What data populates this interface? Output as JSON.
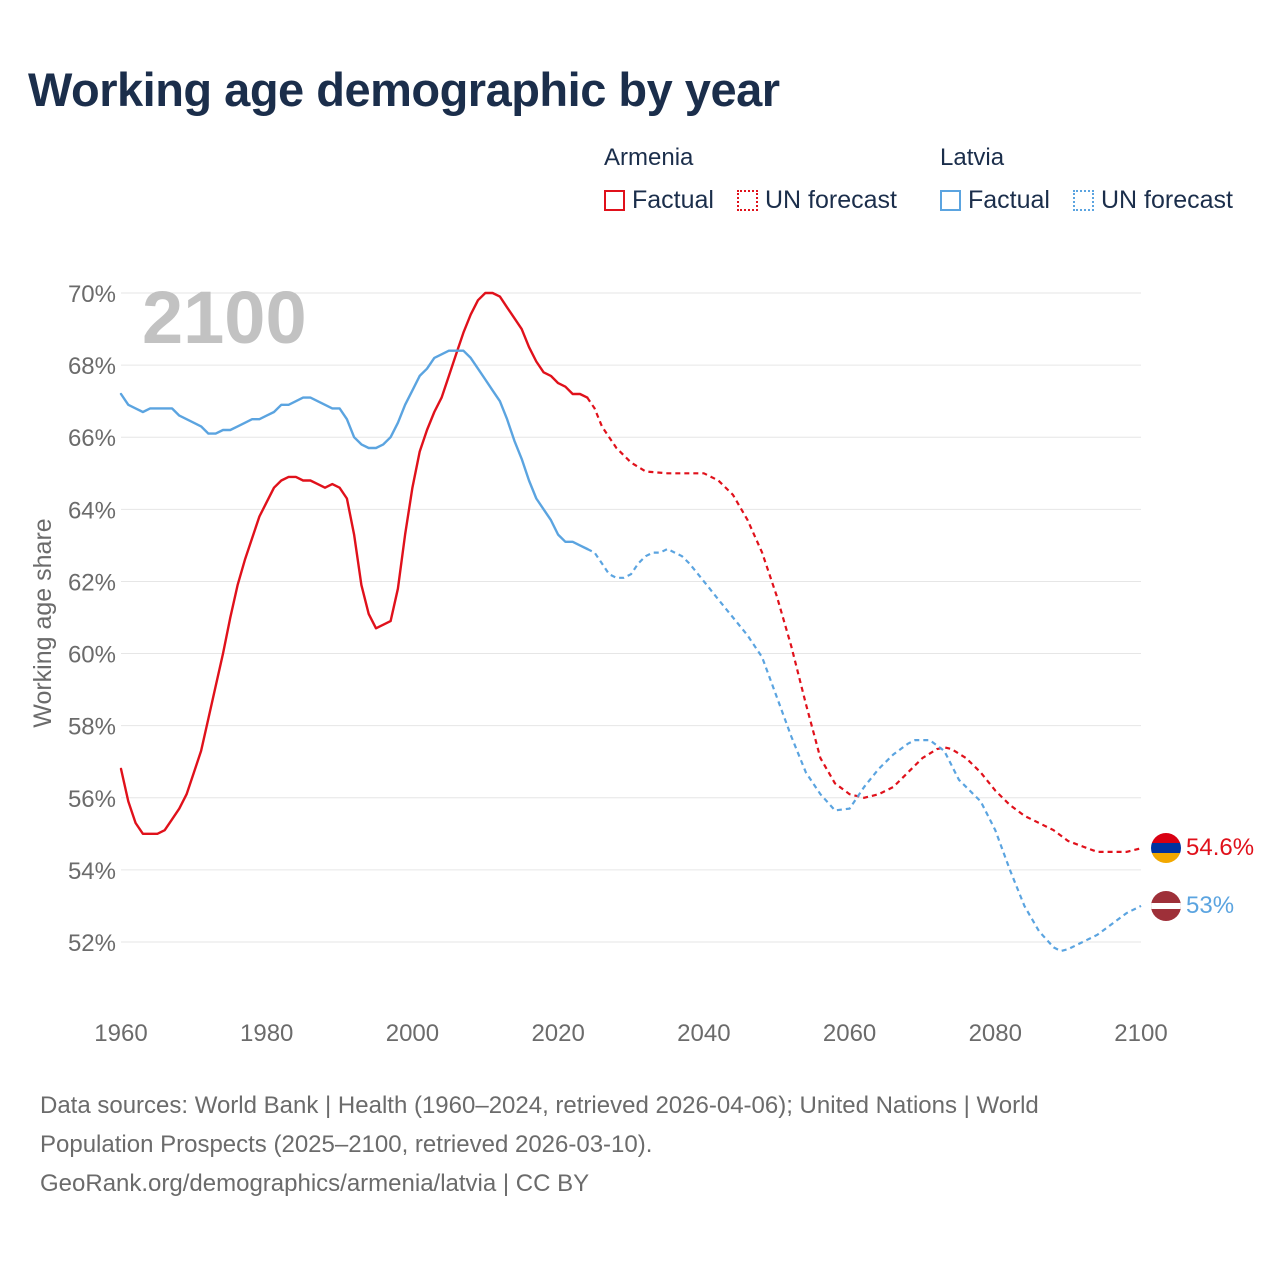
{
  "title": "Working age demographic by year",
  "legend": {
    "groups": [
      {
        "name": "Armenia",
        "color": "#e0111b",
        "factual_label": "Factual",
        "forecast_label": "UN forecast"
      },
      {
        "name": "Latvia",
        "color": "#5ba4e0",
        "factual_label": "Factual",
        "forecast_label": "UN forecast"
      }
    ]
  },
  "year_watermark": "2100",
  "source": {
    "line1": "Data sources: World Bank | Health (1960–2024, retrieved 2026-04-06); United Nations | World",
    "line2": "Population Prospects (2025–2100, retrieved 2026-03-10).",
    "line3": "GeoRank.org/demographics/armenia/latvia | CC BY"
  },
  "chart_data": {
    "type": "line",
    "title": "Working age demographic by year",
    "xlabel": "",
    "ylabel": "Working age share",
    "xlim": [
      1960,
      2100
    ],
    "ylim": [
      51,
      70
    ],
    "x_ticks": [
      1960,
      1980,
      2000,
      2020,
      2040,
      2060,
      2080,
      2100
    ],
    "y_ticks": [
      52,
      54,
      56,
      58,
      60,
      62,
      64,
      66,
      68,
      70
    ],
    "y_tick_labels": [
      "52%",
      "54%",
      "56%",
      "58%",
      "60%",
      "62%",
      "64%",
      "66%",
      "68%",
      "70%"
    ],
    "grid": true,
    "legend_position": "top-right",
    "factual_end_year": 2024,
    "series": [
      {
        "name": "Armenia",
        "color": "#e0111b",
        "end_label": "54.6%",
        "points": [
          [
            1960,
            56.8
          ],
          [
            1961,
            55.9
          ],
          [
            1962,
            55.3
          ],
          [
            1963,
            55.0
          ],
          [
            1964,
            55.0
          ],
          [
            1965,
            55.0
          ],
          [
            1966,
            55.1
          ],
          [
            1967,
            55.4
          ],
          [
            1968,
            55.7
          ],
          [
            1969,
            56.1
          ],
          [
            1970,
            56.7
          ],
          [
            1971,
            57.3
          ],
          [
            1972,
            58.2
          ],
          [
            1973,
            59.1
          ],
          [
            1974,
            60.0
          ],
          [
            1975,
            61.0
          ],
          [
            1976,
            61.9
          ],
          [
            1977,
            62.6
          ],
          [
            1978,
            63.2
          ],
          [
            1979,
            63.8
          ],
          [
            1980,
            64.2
          ],
          [
            1981,
            64.6
          ],
          [
            1982,
            64.8
          ],
          [
            1983,
            64.9
          ],
          [
            1984,
            64.9
          ],
          [
            1985,
            64.8
          ],
          [
            1986,
            64.8
          ],
          [
            1987,
            64.7
          ],
          [
            1988,
            64.6
          ],
          [
            1989,
            64.7
          ],
          [
            1990,
            64.6
          ],
          [
            1991,
            64.3
          ],
          [
            1992,
            63.3
          ],
          [
            1993,
            61.9
          ],
          [
            1994,
            61.1
          ],
          [
            1995,
            60.7
          ],
          [
            1996,
            60.8
          ],
          [
            1997,
            60.9
          ],
          [
            1998,
            61.8
          ],
          [
            1999,
            63.3
          ],
          [
            2000,
            64.6
          ],
          [
            2001,
            65.6
          ],
          [
            2002,
            66.2
          ],
          [
            2003,
            66.7
          ],
          [
            2004,
            67.1
          ],
          [
            2005,
            67.7
          ],
          [
            2006,
            68.3
          ],
          [
            2007,
            68.9
          ],
          [
            2008,
            69.4
          ],
          [
            2009,
            69.8
          ],
          [
            2010,
            70.0
          ],
          [
            2011,
            70.0
          ],
          [
            2012,
            69.9
          ],
          [
            2013,
            69.6
          ],
          [
            2014,
            69.3
          ],
          [
            2015,
            69.0
          ],
          [
            2016,
            68.5
          ],
          [
            2017,
            68.1
          ],
          [
            2018,
            67.8
          ],
          [
            2019,
            67.7
          ],
          [
            2020,
            67.5
          ],
          [
            2021,
            67.4
          ],
          [
            2022,
            67.2
          ],
          [
            2023,
            67.2
          ],
          [
            2024,
            67.1
          ],
          [
            2025,
            66.8
          ],
          [
            2026,
            66.3
          ],
          [
            2028,
            65.7
          ],
          [
            2030,
            65.3
          ],
          [
            2032,
            65.05
          ],
          [
            2035,
            65.0
          ],
          [
            2040,
            65.0
          ],
          [
            2042,
            64.8
          ],
          [
            2044,
            64.4
          ],
          [
            2046,
            63.7
          ],
          [
            2048,
            62.8
          ],
          [
            2050,
            61.6
          ],
          [
            2052,
            60.2
          ],
          [
            2054,
            58.6
          ],
          [
            2056,
            57.1
          ],
          [
            2058,
            56.4
          ],
          [
            2060,
            56.1
          ],
          [
            2062,
            56.0
          ],
          [
            2064,
            56.1
          ],
          [
            2066,
            56.3
          ],
          [
            2068,
            56.7
          ],
          [
            2070,
            57.1
          ],
          [
            2072,
            57.35
          ],
          [
            2073,
            57.4
          ],
          [
            2074,
            57.35
          ],
          [
            2076,
            57.1
          ],
          [
            2078,
            56.7
          ],
          [
            2080,
            56.2
          ],
          [
            2082,
            55.8
          ],
          [
            2084,
            55.5
          ],
          [
            2086,
            55.3
          ],
          [
            2088,
            55.1
          ],
          [
            2090,
            54.8
          ],
          [
            2092,
            54.65
          ],
          [
            2094,
            54.5
          ],
          [
            2096,
            54.5
          ],
          [
            2098,
            54.5
          ],
          [
            2100,
            54.6
          ]
        ]
      },
      {
        "name": "Latvia",
        "color": "#5ba4e0",
        "end_label": "53%",
        "points": [
          [
            1960,
            67.2
          ],
          [
            1961,
            66.9
          ],
          [
            1962,
            66.8
          ],
          [
            1963,
            66.7
          ],
          [
            1964,
            66.8
          ],
          [
            1965,
            66.8
          ],
          [
            1966,
            66.8
          ],
          [
            1967,
            66.8
          ],
          [
            1968,
            66.6
          ],
          [
            1969,
            66.5
          ],
          [
            1970,
            66.4
          ],
          [
            1971,
            66.3
          ],
          [
            1972,
            66.1
          ],
          [
            1973,
            66.1
          ],
          [
            1974,
            66.2
          ],
          [
            1975,
            66.2
          ],
          [
            1976,
            66.3
          ],
          [
            1977,
            66.4
          ],
          [
            1978,
            66.5
          ],
          [
            1979,
            66.5
          ],
          [
            1980,
            66.6
          ],
          [
            1981,
            66.7
          ],
          [
            1982,
            66.9
          ],
          [
            1983,
            66.9
          ],
          [
            1984,
            67.0
          ],
          [
            1985,
            67.1
          ],
          [
            1986,
            67.1
          ],
          [
            1987,
            67.0
          ],
          [
            1988,
            66.9
          ],
          [
            1989,
            66.8
          ],
          [
            1990,
            66.8
          ],
          [
            1991,
            66.5
          ],
          [
            1992,
            66.0
          ],
          [
            1993,
            65.8
          ],
          [
            1994,
            65.7
          ],
          [
            1995,
            65.7
          ],
          [
            1996,
            65.8
          ],
          [
            1997,
            66.0
          ],
          [
            1998,
            66.4
          ],
          [
            1999,
            66.9
          ],
          [
            2000,
            67.3
          ],
          [
            2001,
            67.7
          ],
          [
            2002,
            67.9
          ],
          [
            2003,
            68.2
          ],
          [
            2004,
            68.3
          ],
          [
            2005,
            68.4
          ],
          [
            2006,
            68.4
          ],
          [
            2007,
            68.4
          ],
          [
            2008,
            68.2
          ],
          [
            2009,
            67.9
          ],
          [
            2010,
            67.6
          ],
          [
            2011,
            67.3
          ],
          [
            2012,
            67.0
          ],
          [
            2013,
            66.5
          ],
          [
            2014,
            65.9
          ],
          [
            2015,
            65.4
          ],
          [
            2016,
            64.8
          ],
          [
            2017,
            64.3
          ],
          [
            2018,
            64.0
          ],
          [
            2019,
            63.7
          ],
          [
            2020,
            63.3
          ],
          [
            2021,
            63.1
          ],
          [
            2022,
            63.1
          ],
          [
            2023,
            63.0
          ],
          [
            2024,
            62.9
          ],
          [
            2025,
            62.8
          ],
          [
            2026,
            62.5
          ],
          [
            2027,
            62.2
          ],
          [
            2028,
            62.1
          ],
          [
            2029,
            62.1
          ],
          [
            2030,
            62.2
          ],
          [
            2031,
            62.5
          ],
          [
            2032,
            62.7
          ],
          [
            2033,
            62.8
          ],
          [
            2034,
            62.8
          ],
          [
            2035,
            62.9
          ],
          [
            2036,
            62.8
          ],
          [
            2037,
            62.7
          ],
          [
            2038,
            62.5
          ],
          [
            2040,
            62.0
          ],
          [
            2042,
            61.5
          ],
          [
            2044,
            61.0
          ],
          [
            2046,
            60.5
          ],
          [
            2048,
            59.9
          ],
          [
            2050,
            58.8
          ],
          [
            2052,
            57.7
          ],
          [
            2054,
            56.7
          ],
          [
            2056,
            56.1
          ],
          [
            2058,
            55.65
          ],
          [
            2060,
            55.7
          ],
          [
            2062,
            56.3
          ],
          [
            2064,
            56.8
          ],
          [
            2066,
            57.2
          ],
          [
            2068,
            57.5
          ],
          [
            2069,
            57.6
          ],
          [
            2071,
            57.6
          ],
          [
            2073,
            57.3
          ],
          [
            2075,
            56.5
          ],
          [
            2077,
            56.1
          ],
          [
            2078,
            55.9
          ],
          [
            2080,
            55.1
          ],
          [
            2082,
            54.0
          ],
          [
            2084,
            53.0
          ],
          [
            2086,
            52.3
          ],
          [
            2088,
            51.85
          ],
          [
            2089,
            51.75
          ],
          [
            2090,
            51.8
          ],
          [
            2092,
            52.0
          ],
          [
            2094,
            52.2
          ],
          [
            2096,
            52.5
          ],
          [
            2098,
            52.8
          ],
          [
            2100,
            53.0
          ]
        ]
      }
    ]
  }
}
